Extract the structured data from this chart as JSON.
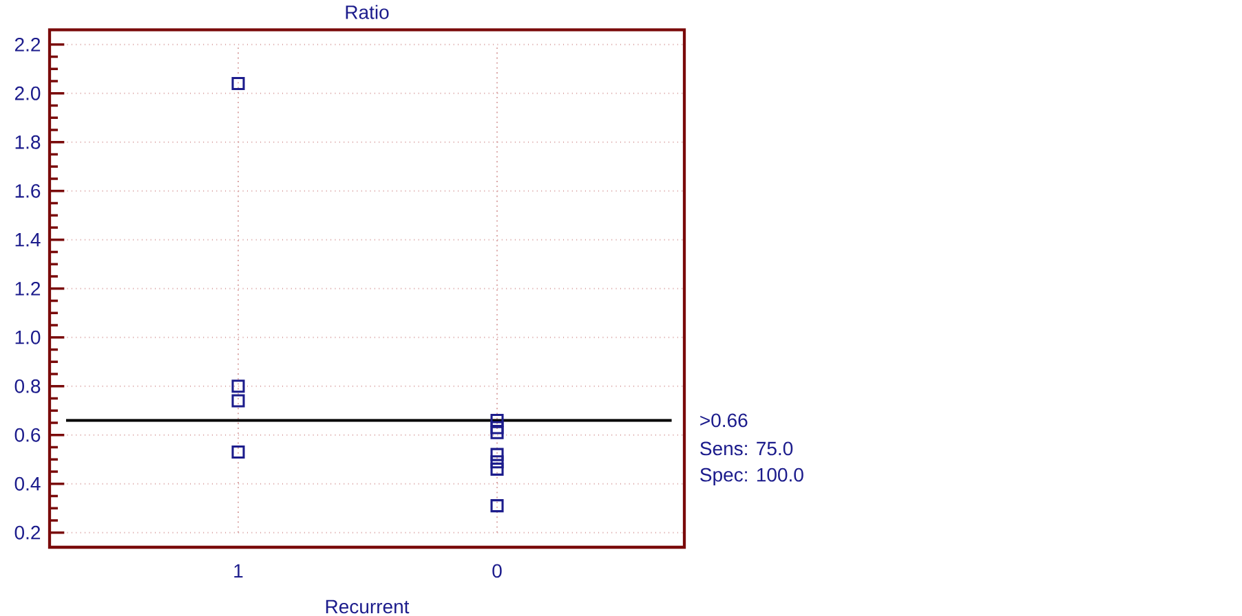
{
  "chart_data": {
    "type": "scatter",
    "title": "Ratio",
    "xlabel": "Recurrent",
    "categories": [
      "1",
      "0"
    ],
    "series": [
      {
        "color": "#1c1c8c",
        "x": [
          "1",
          "1",
          "1",
          "1",
          "0",
          "0",
          "0",
          "0",
          "0",
          "0",
          "0"
        ],
        "values": [
          2.04,
          0.8,
          0.74,
          0.53,
          0.66,
          0.63,
          0.61,
          0.52,
          0.49,
          0.46,
          0.31
        ]
      }
    ],
    "ylim": [
      0.14,
      2.26
    ],
    "yticks": [
      0.2,
      0.4,
      0.6,
      0.8,
      {
        "value": 1.0,
        "label": "1.0"
      },
      1.2,
      1.4,
      1.6,
      1.8,
      {
        "value": 2.0,
        "label": "2.0"
      },
      2.2
    ],
    "grid": true,
    "marker": "square",
    "ref_lines": [
      {
        "axis": "y",
        "value": 0.66,
        "label": ">0.66",
        "color": "#000000"
      }
    ],
    "annotations": [
      "Sens: 75.0",
      "Spec: 100.0"
    ]
  }
}
